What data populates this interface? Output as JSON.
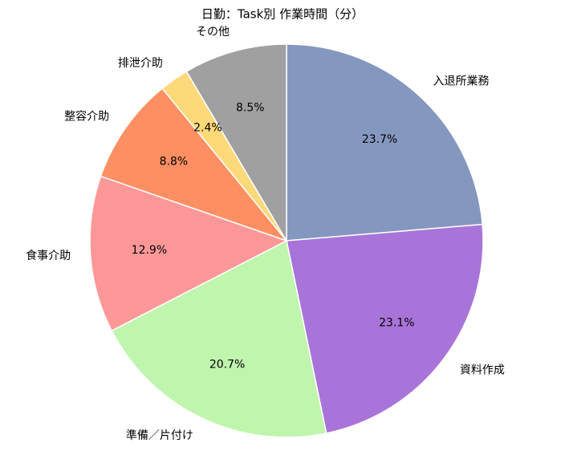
{
  "chart_data": {
    "type": "pie",
    "title": "日勤：Task別 作業時間（分）",
    "categories": [
      "入退所業務",
      "資料作成",
      "準備／片付け",
      "食事介助",
      "整容介助",
      "排泄介助",
      "その他"
    ],
    "values": [
      23.7,
      23.1,
      20.7,
      12.9,
      8.8,
      2.4,
      8.5
    ],
    "value_labels": [
      "23.7%",
      "23.1%",
      "20.7%",
      "12.9%",
      "8.8%",
      "2.4%",
      "8.5%"
    ],
    "colors": [
      "#8497bf",
      "#a974d9",
      "#c0f5ae",
      "#fe9898",
      "#fe8f62",
      "#fed97a",
      "#a0a0a0"
    ]
  }
}
